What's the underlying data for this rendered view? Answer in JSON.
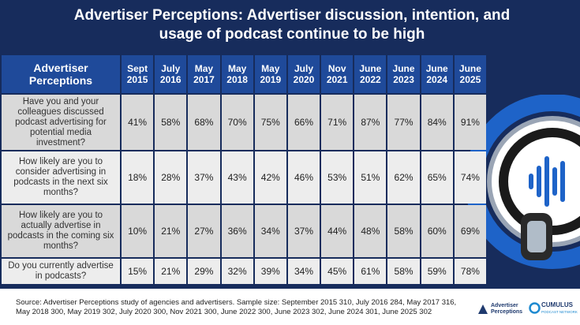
{
  "title": "Advertiser Perceptions: Advertiser discussion, intention, and usage of podcast continue to be high",
  "table": {
    "corner": "Advertiser Perceptions",
    "columns": [
      "Sept 2015",
      "July 2016",
      "May 2017",
      "May 2018",
      "May 2019",
      "July 2020",
      "Nov 2021",
      "June 2022",
      "June 2023",
      "June 2024",
      "June 2025"
    ],
    "rows": [
      {
        "label": "Have you and your colleagues discussed podcast advertising for potential media investment?",
        "cells": [
          "41%",
          "58%",
          "68%",
          "70%",
          "75%",
          "66%",
          "71%",
          "87%",
          "77%",
          "84%",
          "91%"
        ]
      },
      {
        "label": "How likely are you to consider advertising in podcasts in the next six months?",
        "cells": [
          "18%",
          "28%",
          "37%",
          "43%",
          "42%",
          "46%",
          "53%",
          "51%",
          "62%",
          "65%",
          "74%"
        ]
      },
      {
        "label": "How likely are you to actually advertise in podcasts in the coming six months?",
        "cells": [
          "10%",
          "21%",
          "27%",
          "36%",
          "34%",
          "37%",
          "44%",
          "48%",
          "58%",
          "60%",
          "69%"
        ]
      },
      {
        "label": "Do you currently advertise in podcasts?",
        "cells": [
          "15%",
          "21%",
          "29%",
          "32%",
          "39%",
          "34%",
          "45%",
          "61%",
          "58%",
          "59%",
          "78%"
        ]
      }
    ]
  },
  "footer": {
    "source": "Source: Advertiser Perceptions study of agencies and advertisers. Sample size: September 2015 310, July 2016 284, May 2017 316, May 2018 300, May 2019 302, July 2020 300, Nov 2021 300, June 2022 300, June 2023 302, June 2024 301, June 2025 302",
    "brand": "Advertiser Perceptions",
    "partner": "CUMULUS",
    "partner_sub": "PODCAST NETWORK"
  }
}
